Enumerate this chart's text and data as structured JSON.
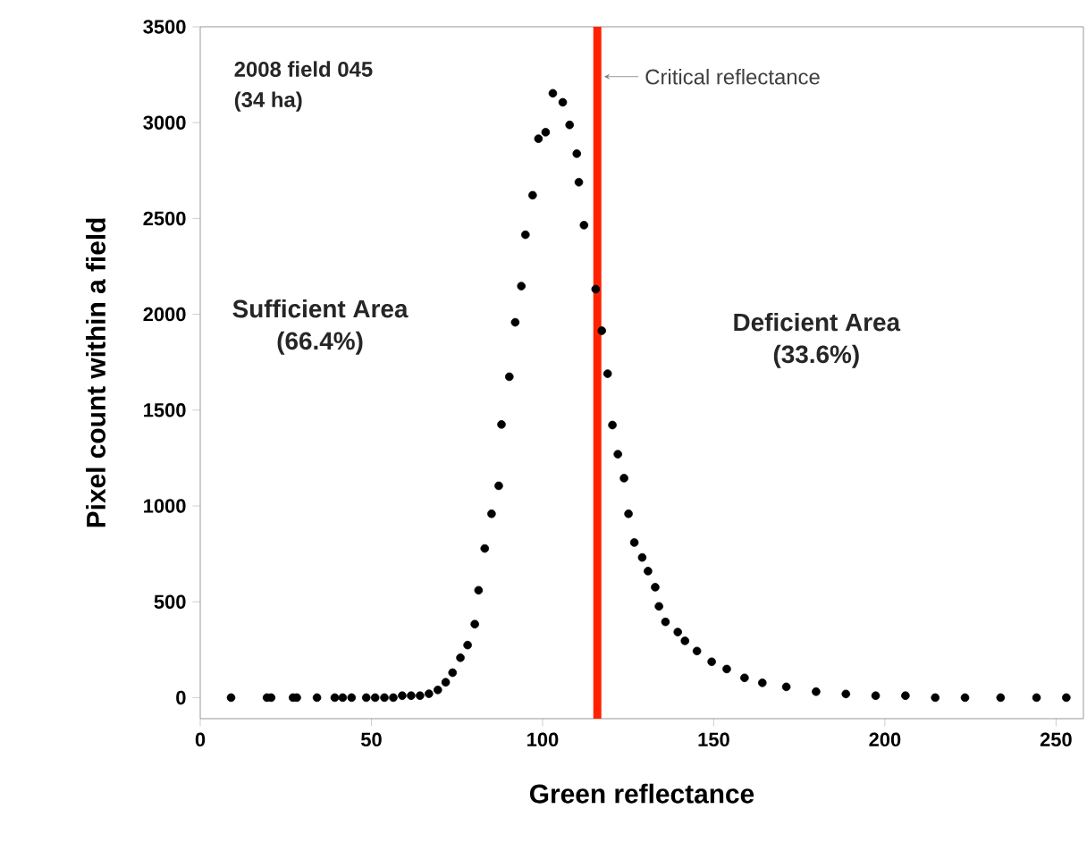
{
  "chart_data": {
    "type": "scatter",
    "xlabel": "Green reflectance",
    "ylabel": "Pixel count within a field",
    "annotations": [
      "2008 field 045",
      "(34 ha)",
      "Sufficient Area",
      "(66.4%)",
      "Deficient Area",
      "(33.6%)"
    ],
    "x": [
      9,
      19.5,
      20.7,
      27.1,
      28.2,
      34.1,
      39.3,
      41.6,
      44.2,
      48.5,
      51.1,
      53.8,
      56.4,
      59,
      61.6,
      64.2,
      66.8,
      69.4,
      71.7,
      73.7,
      76,
      78.1,
      80.2,
      81.3,
      83.1,
      85.1,
      87.2,
      88,
      90.3,
      92,
      93.8,
      95,
      97.1,
      98.8,
      100.9,
      103,
      105.9,
      107.9,
      110,
      110.6,
      112.1,
      115.5,
      117.3,
      119,
      120.4,
      122,
      123.8,
      125.1,
      126.8,
      129.1,
      130.8,
      132.9,
      134,
      135.9,
      139.5,
      141.6,
      145.1,
      149.4,
      153.8,
      159,
      164.2,
      171.2,
      179.9,
      188.6,
      197.3,
      206,
      214.7,
      223.4,
      233.8,
      244.3,
      253
    ],
    "series": [
      {
        "color": "#000000",
        "values": [
          0,
          0,
          0,
          0,
          0,
          0,
          0,
          0,
          0,
          0,
          0,
          0,
          0,
          10,
          10,
          10,
          20,
          40,
          80,
          130,
          208,
          274,
          383,
          560,
          778,
          959,
          1105,
          1425,
          1674,
          1958,
          2147,
          2415,
          2621,
          2916,
          2950,
          3153,
          3106,
          2988,
          2838,
          2689,
          2465,
          2131,
          1914,
          1690,
          1422,
          1270,
          1145,
          959,
          809,
          731,
          660,
          576,
          476,
          395,
          342,
          296,
          243,
          187,
          149,
          103,
          77,
          56,
          31,
          19,
          10,
          10,
          0,
          0,
          0,
          0,
          0
        ]
      }
    ],
    "marker": "circle",
    "xlim": [
      0,
      258
    ],
    "ylim": [
      -110,
      3500
    ],
    "xticks": [
      0,
      50,
      100,
      150,
      200,
      250
    ],
    "yticks": [
      0,
      500,
      1000,
      1500,
      2000,
      2500,
      3000,
      3500
    ],
    "ref_lines": [
      {
        "axis": "x",
        "value": 116,
        "label": "Critical reflectance",
        "color": "#ff2200"
      }
    ],
    "grid": false
  }
}
